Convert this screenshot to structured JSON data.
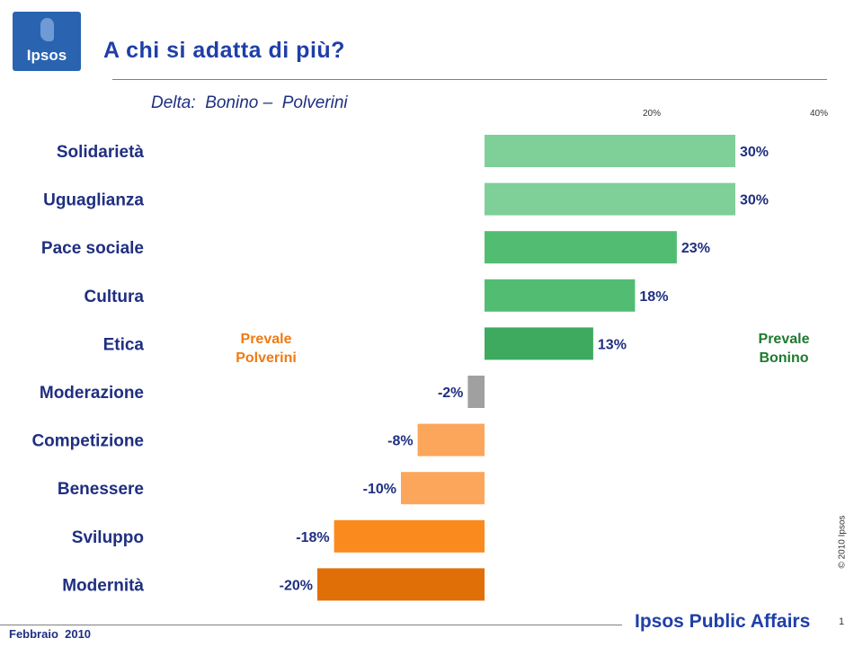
{
  "header": {
    "logo_text": "Ipsos",
    "title": "A chi si adatta di più?"
  },
  "chart_data": {
    "type": "bar",
    "orientation": "horizontal",
    "title": "Delta:  Bonino –  Polverini",
    "categories": [
      "Solidarietà",
      "Uguaglianza",
      "Pace sociale",
      "Cultura",
      "Etica",
      "Moderazione",
      "Competizione",
      "Benessere",
      "Sviluppo",
      "Modernità"
    ],
    "values": [
      30,
      30,
      23,
      18,
      13,
      -2,
      -8,
      -10,
      -18,
      -20
    ],
    "value_labels": [
      "30%",
      "30%",
      "23%",
      "18%",
      "13%",
      "-2%",
      "-8%",
      "-10%",
      "-18%",
      "-20%"
    ],
    "bar_colors": [
      "#7fcf98",
      "#7fcf98",
      "#52bd72",
      "#52bd72",
      "#3daa5f",
      "#a0a0a0",
      "#fba65a",
      "#fba65a",
      "#fb8a1e",
      "#e06f08"
    ],
    "xticks": [
      20,
      40
    ],
    "xtick_labels": [
      "20%",
      "40%"
    ],
    "xlim": [
      -40,
      40
    ],
    "annotations": [
      {
        "text": "Prevale\nPolverini",
        "color": "#f07a12"
      },
      {
        "text": "Prevale\nBonino",
        "color": "#1e7a2e"
      }
    ],
    "label_color": "#1f2f80"
  },
  "sidebar": {
    "copyright": "© 2010 Ipsos"
  },
  "footer": {
    "date": "Febbraio  2010",
    "brand": "Ipsos Public Affairs",
    "page_number": "1"
  }
}
